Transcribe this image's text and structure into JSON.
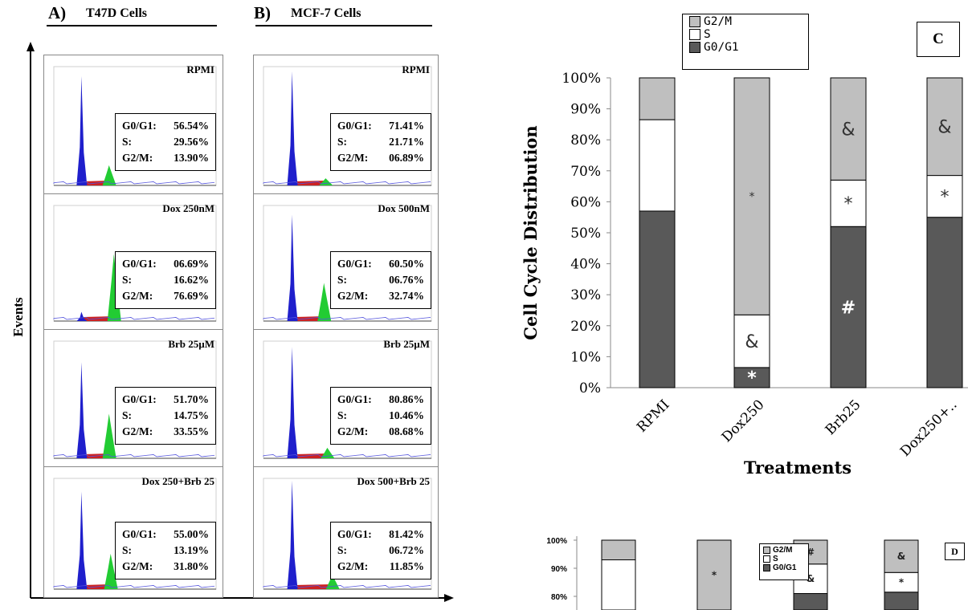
{
  "panels": {
    "A": {
      "letter": "A)",
      "title": "T47D Cells"
    },
    "B": {
      "letter": "B)",
      "title": "MCF-7 Cells"
    },
    "C": {
      "letter": "C"
    },
    "D": {
      "letter": "D"
    }
  },
  "events_label": "Events",
  "histograms": {
    "T47D": [
      {
        "label": "RPMI",
        "rows": [
          [
            "G0/G1:",
            "56.54%"
          ],
          [
            "S:",
            "29.56%"
          ],
          [
            "G2/M:",
            "13.90%"
          ]
        ],
        "g1": 0.92,
        "g2": 0.17,
        "g2pos": 0.34
      },
      {
        "label": "Dox 250nM",
        "rows": [
          [
            "G0/G1:",
            "06.69%"
          ],
          [
            "S:",
            "16.62%"
          ],
          [
            "G2/M:",
            "76.69%"
          ]
        ],
        "g1": 0.08,
        "g2": 0.58,
        "g2pos": 0.37
      },
      {
        "label": "Brb 25µM",
        "rows": [
          [
            "G0/G1:",
            "51.70%"
          ],
          [
            "S:",
            "14.75%"
          ],
          [
            "G2/M:",
            "33.55%"
          ]
        ],
        "g1": 0.82,
        "g2": 0.38,
        "g2pos": 0.34
      },
      {
        "label": "Dox 250+Brb 25",
        "rows": [
          [
            "G0/G1:",
            "55.00%"
          ],
          [
            "S:",
            "13.19%"
          ],
          [
            "G2/M:",
            "31.80%"
          ]
        ],
        "g1": 0.88,
        "g2": 0.32,
        "g2pos": 0.35
      }
    ],
    "MCF7": [
      {
        "label": "RPMI",
        "rows": [
          [
            "G0/G1:",
            "71.41%"
          ],
          [
            "S:",
            "21.71%"
          ],
          [
            "G2/M:",
            "06.89%"
          ]
        ],
        "g1": 0.96,
        "g2": 0.06,
        "g2pos": 0.37
      },
      {
        "label": "Dox 500nM",
        "rows": [
          [
            "G0/G1:",
            "60.50%"
          ],
          [
            "S:",
            "06.76%"
          ],
          [
            "G2/M:",
            "32.74%"
          ]
        ],
        "g1": 0.92,
        "g2": 0.33,
        "g2pos": 0.36
      },
      {
        "label": "Brb 25µM",
        "rows": [
          [
            "G0/G1:",
            "80.86%"
          ],
          [
            "S:",
            "10.46%"
          ],
          [
            "G2/M:",
            "08.68%"
          ]
        ],
        "g1": 0.95,
        "g2": 0.09,
        "g2pos": 0.38
      },
      {
        "label": "Dox 500+Brb 25",
        "rows": [
          [
            "G0/G1:",
            "81.42%"
          ],
          [
            "S:",
            "06.72%"
          ],
          [
            "G2/M:",
            "11.85%"
          ]
        ],
        "g1": 0.98,
        "g2": 0.13,
        "g2pos": 0.41
      }
    ]
  },
  "colors": {
    "g0g1": "#595959",
    "s": "#ffffff",
    "g2m": "#bfbfbf",
    "g1_peak": "#1f1fcc",
    "s_fill": "#cc2222",
    "g2_peak": "#22cc33",
    "blue_line": "#5555dd"
  },
  "chart_data": [
    {
      "type": "bar",
      "stacked": true,
      "categories": [
        "RPMI",
        "Dox250",
        "Brb25",
        "Dox250+.."
      ],
      "series": [
        {
          "name": "G0/G1",
          "values": [
            57,
            6.5,
            52,
            55
          ]
        },
        {
          "name": "S",
          "values": [
            29.5,
            17,
            15,
            13.5
          ]
        },
        {
          "name": "G2/M",
          "values": [
            13.5,
            76.5,
            33,
            31.5
          ]
        }
      ],
      "annotations": [
        {
          "category": "Dox250",
          "series": "G0/G1",
          "text": "*"
        },
        {
          "category": "Dox250",
          "series": "S",
          "text": "&"
        },
        {
          "category": "Dox250",
          "series": "G2/M",
          "text": "*"
        },
        {
          "category": "Brb25",
          "series": "G0/G1",
          "text": "#"
        },
        {
          "category": "Brb25",
          "series": "S",
          "text": "*"
        },
        {
          "category": "Brb25",
          "series": "G2/M",
          "text": "&"
        },
        {
          "category": "Dox250+..",
          "series": "S",
          "text": "*"
        },
        {
          "category": "Dox250+..",
          "series": "G2/M",
          "text": "&"
        }
      ],
      "legend": [
        "G2/M",
        "S",
        "G0/G1"
      ],
      "legend_position": "top",
      "xlabel": "Treatments",
      "ylabel": "Cell Cycle Distribution",
      "ylim": [
        0,
        100
      ],
      "yticks": [
        "0%",
        "10%",
        "20%",
        "30%",
        "40%",
        "50%",
        "60%",
        "70%",
        "80%",
        "90%",
        "100%"
      ]
    },
    {
      "type": "bar",
      "stacked": true,
      "categories": [
        "",
        "",
        "",
        ""
      ],
      "series": [
        {
          "name": "G0/G1",
          "values": [
            71.5,
            60.5,
            81,
            81.5
          ]
        },
        {
          "name": "S",
          "values": [
            21.5,
            7,
            10.5,
            7
          ]
        },
        {
          "name": "G2/M",
          "values": [
            7,
            32.5,
            8.5,
            11.5
          ]
        }
      ],
      "annotations": [
        {
          "category": 1,
          "series": "G2/M",
          "text": "*"
        },
        {
          "category": 2,
          "series": "G2/M",
          "text": "#"
        },
        {
          "category": 2,
          "series": "S",
          "text": "&"
        },
        {
          "category": 3,
          "series": "G2/M",
          "text": "&"
        },
        {
          "category": 3,
          "series": "S",
          "text": "*"
        }
      ],
      "legend": [
        "G2/M",
        "S",
        "G0/G1"
      ],
      "legend_position": "inside",
      "yticks": [
        "80%",
        "90%",
        "100%"
      ],
      "ylim_visible": [
        78,
        100
      ]
    }
  ]
}
